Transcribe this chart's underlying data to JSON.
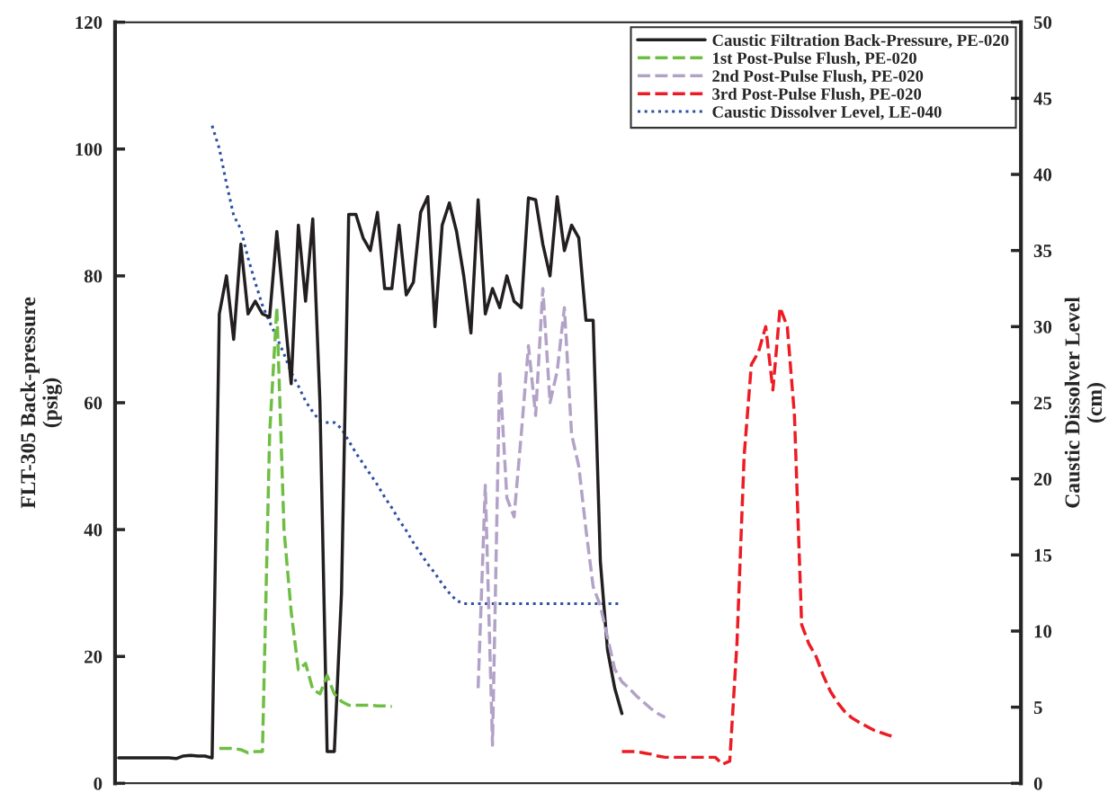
{
  "chart_data": {
    "type": "line",
    "ylabel": "FLT-305 Back-pressure\n(psig)",
    "y2label": "Caustic Dissolver Level\n(cm)",
    "categories": [
      null,
      null,
      null,
      null,
      null,
      null,
      null,
      null,
      null,
      null,
      null,
      null,
      null,
      null,
      null,
      null,
      null,
      null,
      null,
      null,
      null,
      null,
      null,
      null,
      null,
      null,
      null,
      null,
      null,
      null,
      null,
      null,
      null,
      null,
      null,
      null,
      null,
      null,
      null,
      null,
      null,
      null,
      null,
      null,
      null,
      null,
      null,
      null,
      null,
      null,
      null,
      null,
      null,
      null,
      null,
      null,
      null,
      null,
      null,
      null,
      null,
      null,
      null,
      null,
      null,
      null,
      null,
      null,
      null,
      null,
      null,
      null,
      null,
      null,
      null,
      null,
      null,
      null,
      null,
      null,
      null,
      null,
      null,
      null,
      null,
      null,
      null,
      null,
      null,
      null,
      null,
      null,
      null,
      null,
      null,
      null,
      null,
      null,
      null,
      null,
      null,
      null,
      null,
      null,
      null,
      null,
      null,
      null,
      null,
      null,
      null,
      null,
      null,
      null,
      null,
      null,
      null,
      null,
      null,
      null,
      null,
      null,
      null,
      null,
      null,
      null
    ],
    "series": [
      {
        "name": "Caustic Filtration Back-Pressure, PE-020",
        "color": "#231f20",
        "line_style": "solid",
        "values": [
          4,
          4,
          4,
          4,
          4,
          4,
          4,
          4,
          3.9,
          4.3,
          4.4,
          4.3,
          4.3,
          4.0,
          74,
          80,
          70,
          85,
          74,
          76,
          74,
          73.5,
          87,
          75,
          63,
          88,
          76,
          89,
          60,
          5,
          5,
          30,
          89.7,
          89.7,
          86,
          84,
          90,
          78,
          78,
          88,
          77,
          79,
          90,
          92.5,
          72,
          88,
          91.5,
          87,
          80,
          71,
          92,
          74,
          78,
          75,
          80,
          76,
          75,
          92.3,
          92,
          85,
          80,
          92.5,
          84,
          88,
          86,
          73,
          73,
          35,
          21,
          15,
          11,
          null,
          null,
          null,
          null,
          null,
          null,
          null,
          null,
          null,
          null,
          null,
          null,
          null,
          null,
          null,
          null,
          null,
          null,
          null,
          null,
          null,
          null,
          null,
          null,
          null,
          null,
          null,
          null,
          null,
          null,
          null,
          null,
          null,
          null,
          null,
          null,
          null,
          null,
          null,
          null,
          null,
          null,
          null,
          null,
          null,
          null,
          null,
          null,
          null,
          null,
          null,
          null,
          null,
          null,
          null
        ]
      },
      {
        "name": "1st Post-Pulse Flush, PE-020",
        "color": "#6fbe44",
        "line_style": "dashed",
        "values": [
          null,
          null,
          null,
          null,
          null,
          null,
          null,
          null,
          null,
          null,
          null,
          null,
          null,
          null,
          5.5,
          5.5,
          5.5,
          5.3,
          4.8,
          5.0,
          5.0,
          55,
          75,
          40,
          27,
          17.9,
          18.9,
          14.8,
          14.1,
          17,
          14.1,
          12.9,
          12.3,
          12.3,
          12.3,
          12.3,
          12.2,
          12.2,
          12.1,
          null,
          null,
          null,
          null,
          null,
          null,
          null,
          null,
          null,
          null,
          null,
          null,
          null,
          null,
          null,
          null,
          null,
          null,
          null,
          null,
          null,
          null,
          null,
          null,
          null,
          null,
          null,
          null,
          null,
          null,
          null,
          null,
          null,
          null,
          null,
          null,
          null,
          null,
          null,
          null,
          null,
          null,
          null,
          null,
          null,
          null,
          null,
          null,
          null,
          null,
          null,
          null,
          null,
          null,
          null,
          null,
          null,
          null,
          null,
          null,
          null,
          null,
          null,
          null,
          null,
          null,
          null,
          null,
          null,
          null,
          null,
          null,
          null,
          null,
          null,
          null,
          null,
          null,
          null,
          null,
          null,
          null,
          null,
          null,
          null,
          null,
          null
        ]
      },
      {
        "name": "2nd Post-Pulse Flush, PE-020",
        "color": "#b3a2c7",
        "line_style": "dashed",
        "values": [
          null,
          null,
          null,
          null,
          null,
          null,
          null,
          null,
          null,
          null,
          null,
          null,
          null,
          null,
          null,
          null,
          null,
          null,
          null,
          null,
          null,
          null,
          null,
          null,
          null,
          null,
          null,
          null,
          null,
          null,
          null,
          null,
          null,
          null,
          null,
          null,
          null,
          null,
          null,
          null,
          null,
          null,
          null,
          null,
          null,
          null,
          null,
          null,
          null,
          null,
          15,
          47,
          6,
          65,
          45,
          42,
          55,
          69,
          58,
          78,
          60,
          65,
          75,
          55,
          50,
          40,
          31,
          28,
          23,
          18,
          16,
          15,
          13.8,
          12.8,
          11.8,
          11,
          10.4,
          null,
          null,
          null,
          null,
          null,
          null,
          null,
          null,
          null,
          null,
          null,
          null,
          null,
          null,
          null,
          null,
          null,
          null,
          null,
          null,
          null,
          null,
          null,
          null,
          null,
          null,
          null,
          null,
          null,
          null,
          null,
          null,
          null,
          null,
          null,
          null,
          null,
          null,
          null,
          null,
          null,
          null,
          null,
          null,
          null,
          null,
          null,
          null,
          null
        ]
      },
      {
        "name": "3rd Post-Pulse Flush, PE-020",
        "color": "#ed1c24",
        "line_style": "dashed",
        "values": [
          null,
          null,
          null,
          null,
          null,
          null,
          null,
          null,
          null,
          null,
          null,
          null,
          null,
          null,
          null,
          null,
          null,
          null,
          null,
          null,
          null,
          null,
          null,
          null,
          null,
          null,
          null,
          null,
          null,
          null,
          null,
          null,
          null,
          null,
          null,
          null,
          null,
          null,
          null,
          null,
          null,
          null,
          null,
          null,
          null,
          null,
          null,
          null,
          null,
          null,
          null,
          null,
          null,
          null,
          null,
          null,
          null,
          null,
          null,
          null,
          null,
          null,
          null,
          null,
          null,
          null,
          null,
          null,
          null,
          null,
          5.0,
          5.0,
          5.0,
          4.8,
          4.6,
          4.3,
          4.1,
          4.1,
          4.1,
          4.1,
          4.1,
          4.1,
          4.1,
          4.1,
          3,
          3.5,
          22,
          51.6,
          66,
          68,
          72,
          62,
          75,
          72,
          58,
          25,
          22,
          20,
          17,
          14.5,
          12.7,
          11.3,
          10.3,
          9.6,
          9,
          8.4,
          8,
          7.6,
          7.3,
          null,
          null,
          null,
          null,
          null,
          null,
          null,
          null,
          null,
          null,
          null,
          null,
          null,
          null,
          null,
          null,
          null
        ]
      },
      {
        "name": "Caustic Dissolver Level, LE-040",
        "color": "#2e4fa3",
        "line_style": "dotted",
        "axis": "y2",
        "values": [
          null,
          null,
          null,
          null,
          null,
          null,
          null,
          null,
          null,
          null,
          null,
          null,
          null,
          43.2,
          41.7,
          39.4,
          37.3,
          36.4,
          34.5,
          32.9,
          31.4,
          30.3,
          29.3,
          28.2,
          27,
          26.1,
          25.1,
          24.4,
          23.8,
          23.7,
          23.7,
          23.3,
          22.5,
          21.7,
          21,
          20.3,
          19.6,
          18.8,
          18.1,
          17.3,
          16.6,
          15.8,
          15.1,
          14.4,
          13.8,
          13.1,
          12.5,
          12.0,
          11.8,
          11.8,
          11.8,
          11.8,
          11.8,
          11.8,
          11.8,
          11.8,
          11.8,
          11.8,
          11.8,
          11.8,
          11.8,
          11.8,
          11.8,
          11.8,
          11.8,
          11.8,
          11.8,
          11.8,
          11.8,
          11.8,
          11.8,
          null,
          null,
          null,
          null,
          null,
          null,
          null,
          null,
          null,
          null,
          null,
          null,
          null,
          null,
          null,
          null,
          null,
          null,
          null,
          null,
          null,
          null,
          null,
          null,
          null,
          null,
          null,
          null,
          null,
          null,
          null,
          null,
          null,
          null,
          null,
          null,
          null,
          null,
          null,
          null,
          null,
          null,
          null,
          null,
          null,
          null,
          null,
          null,
          null,
          null,
          null,
          null,
          null,
          null,
          null
        ]
      }
    ],
    "ylim": [
      0,
      120
    ],
    "yticks": [
      0,
      20,
      40,
      60,
      80,
      100,
      120
    ],
    "y2lim": [
      0,
      50
    ],
    "y2ticks": [
      0,
      5,
      10,
      15,
      20,
      25,
      30,
      35,
      40,
      45,
      50
    ],
    "tick_labels": "y",
    "grid": false,
    "legend": "top right"
  }
}
